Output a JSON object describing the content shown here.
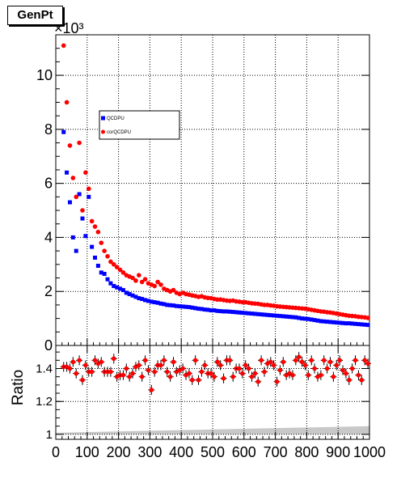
{
  "title": "GenPt",
  "chart_data": [
    {
      "type": "scatter",
      "panel": "main",
      "title": "GenPt",
      "xlabel": "",
      "ylabel": "",
      "exponent_label": "×10³",
      "xlim": [
        0,
        1000
      ],
      "ylim": [
        0,
        11.5
      ],
      "y_unit_multiplier": 1000,
      "xticks": [
        0,
        100,
        200,
        300,
        400,
        500,
        600,
        700,
        800,
        900,
        1000
      ],
      "yticks": [
        0,
        2,
        4,
        6,
        8,
        10
      ],
      "grid": true,
      "legend_placement": "upper-center",
      "series": [
        {
          "name": "QCDPU",
          "color": "#0000ff",
          "marker": "square",
          "x": [
            25,
            35,
            45,
            55,
            65,
            75,
            85,
            95,
            105,
            115,
            125,
            135,
            145,
            155,
            165,
            175,
            185,
            195,
            205,
            215,
            225,
            235,
            245,
            255,
            265,
            275,
            285,
            295,
            305,
            315,
            325,
            335,
            345,
            355,
            365,
            375,
            385,
            395,
            405,
            415,
            425,
            435,
            445,
            455,
            465,
            475,
            485,
            495,
            505,
            515,
            525,
            535,
            545,
            555,
            565,
            575,
            585,
            595,
            605,
            615,
            625,
            635,
            645,
            655,
            665,
            675,
            685,
            695,
            705,
            715,
            725,
            735,
            745,
            755,
            765,
            775,
            785,
            795,
            805,
            815,
            825,
            835,
            845,
            855,
            865,
            875,
            885,
            895,
            905,
            915,
            925,
            935,
            945,
            955,
            965,
            975,
            985,
            995
          ],
          "values": [
            7.9,
            6.4,
            5.3,
            4.0,
            3.5,
            5.6,
            4.7,
            4.05,
            5.5,
            3.65,
            3.25,
            2.95,
            2.7,
            2.65,
            2.45,
            2.3,
            2.2,
            2.15,
            2.1,
            2.05,
            1.95,
            1.9,
            1.85,
            1.8,
            1.75,
            1.72,
            1.68,
            1.65,
            1.62,
            1.6,
            1.58,
            1.55,
            1.53,
            1.5,
            1.49,
            1.48,
            1.46,
            1.45,
            1.44,
            1.43,
            1.42,
            1.4,
            1.38,
            1.36,
            1.35,
            1.33,
            1.32,
            1.3,
            1.3,
            1.28,
            1.27,
            1.26,
            1.26,
            1.25,
            1.24,
            1.23,
            1.22,
            1.21,
            1.2,
            1.19,
            1.18,
            1.17,
            1.16,
            1.15,
            1.14,
            1.13,
            1.12,
            1.11,
            1.1,
            1.09,
            1.08,
            1.07,
            1.06,
            1.05,
            1.04,
            1.02,
            1.0,
            0.99,
            0.98,
            0.96,
            0.94,
            0.92,
            0.9,
            0.89,
            0.88,
            0.87,
            0.86,
            0.85,
            0.84,
            0.83,
            0.82,
            0.82,
            0.81,
            0.8,
            0.79,
            0.78,
            0.77,
            0.76
          ]
        },
        {
          "name": "corQCDPU",
          "color": "#ff0000",
          "marker": "circle",
          "x": [
            25,
            35,
            45,
            55,
            65,
            75,
            85,
            95,
            105,
            115,
            125,
            135,
            145,
            155,
            165,
            175,
            185,
            195,
            205,
            215,
            225,
            235,
            245,
            255,
            265,
            275,
            285,
            295,
            305,
            315,
            325,
            335,
            345,
            355,
            365,
            375,
            385,
            395,
            405,
            415,
            425,
            435,
            445,
            455,
            465,
            475,
            485,
            495,
            505,
            515,
            525,
            535,
            545,
            555,
            565,
            575,
            585,
            595,
            605,
            615,
            625,
            635,
            645,
            655,
            665,
            675,
            685,
            695,
            705,
            715,
            725,
            735,
            745,
            755,
            765,
            775,
            785,
            795,
            805,
            815,
            825,
            835,
            845,
            855,
            865,
            875,
            885,
            895,
            905,
            915,
            925,
            935,
            945,
            955,
            965,
            975,
            985,
            995
          ],
          "values": [
            11.1,
            9.0,
            7.4,
            6.2,
            5.5,
            7.5,
            5.0,
            6.4,
            5.8,
            4.6,
            4.4,
            4.2,
            3.8,
            3.5,
            3.3,
            3.1,
            3.0,
            2.9,
            2.8,
            2.7,
            2.6,
            2.55,
            2.5,
            2.4,
            2.6,
            2.35,
            2.45,
            2.3,
            2.25,
            2.2,
            2.35,
            2.25,
            2.1,
            2.05,
            2.0,
            2.05,
            1.95,
            1.9,
            1.95,
            1.9,
            1.88,
            1.85,
            1.83,
            1.8,
            1.82,
            1.78,
            1.76,
            1.75,
            1.72,
            1.7,
            1.7,
            1.68,
            1.66,
            1.65,
            1.66,
            1.63,
            1.62,
            1.6,
            1.6,
            1.58,
            1.56,
            1.55,
            1.54,
            1.52,
            1.5,
            1.5,
            1.48,
            1.47,
            1.45,
            1.44,
            1.43,
            1.42,
            1.41,
            1.4,
            1.39,
            1.38,
            1.37,
            1.36,
            1.34,
            1.32,
            1.3,
            1.28,
            1.26,
            1.25,
            1.23,
            1.22,
            1.2,
            1.18,
            1.16,
            1.14,
            1.12,
            1.1,
            1.09,
            1.08,
            1.06,
            1.05,
            1.04,
            1.02
          ]
        }
      ]
    },
    {
      "type": "scatter",
      "panel": "ratio",
      "xlabel": "",
      "ylabel": "Ratio",
      "xlim": [
        0,
        1000
      ],
      "ylim": [
        0.97,
        1.54
      ],
      "xticks": [
        0,
        100,
        200,
        300,
        400,
        500,
        600,
        700,
        800,
        900,
        1000
      ],
      "yticks": [
        1.0,
        1.2,
        1.4
      ],
      "grid": true,
      "band": {
        "color": "#c8c8c8",
        "x": [
          0,
          1000
        ],
        "lower": 1.0,
        "upper": [
          1.01,
          1.05
        ]
      },
      "series": [
        {
          "name": "",
          "color": "#ff0000",
          "marker": "circle",
          "error_bars": true,
          "x": [
            25,
            35,
            45,
            55,
            65,
            75,
            85,
            95,
            105,
            115,
            125,
            135,
            145,
            155,
            165,
            175,
            185,
            195,
            205,
            215,
            225,
            235,
            245,
            255,
            265,
            275,
            285,
            295,
            305,
            315,
            325,
            335,
            345,
            355,
            365,
            375,
            385,
            395,
            405,
            415,
            425,
            435,
            445,
            455,
            465,
            475,
            485,
            495,
            505,
            515,
            525,
            535,
            545,
            555,
            565,
            575,
            585,
            595,
            605,
            615,
            625,
            635,
            645,
            655,
            665,
            675,
            685,
            695,
            705,
            715,
            725,
            735,
            745,
            755,
            765,
            775,
            785,
            795,
            805,
            815,
            825,
            835,
            845,
            855,
            865,
            875,
            885,
            895,
            905,
            915,
            925,
            935,
            945,
            955,
            965,
            975,
            985,
            995
          ],
          "values": [
            1.41,
            1.41,
            1.4,
            1.44,
            1.37,
            1.45,
            1.33,
            1.42,
            1.38,
            1.38,
            1.45,
            1.43,
            1.44,
            1.38,
            1.38,
            1.38,
            1.46,
            1.35,
            1.36,
            1.36,
            1.4,
            1.35,
            1.37,
            1.41,
            1.42,
            1.35,
            1.45,
            1.39,
            1.27,
            1.38,
            1.42,
            1.42,
            1.45,
            1.38,
            1.35,
            1.44,
            1.38,
            1.39,
            1.4,
            1.36,
            1.37,
            1.33,
            1.45,
            1.33,
            1.38,
            1.42,
            1.37,
            1.37,
            1.35,
            1.44,
            1.42,
            1.34,
            1.45,
            1.45,
            1.35,
            1.4,
            1.4,
            1.37,
            1.42,
            1.4,
            1.35,
            1.37,
            1.32,
            1.45,
            1.38,
            1.43,
            1.44,
            1.42,
            1.32,
            1.39,
            1.44,
            1.36,
            1.37,
            1.36,
            1.45,
            1.47,
            1.44,
            1.42,
            1.36,
            1.45,
            1.4,
            1.35,
            1.36,
            1.45,
            1.4,
            1.44,
            1.35,
            1.42,
            1.45,
            1.39,
            1.37,
            1.33,
            1.4,
            1.45,
            1.36,
            1.33,
            1.45,
            1.43
          ],
          "errors": [
            0.03,
            0.03,
            0.03,
            0.03,
            0.03,
            0.03,
            0.03,
            0.03,
            0.03,
            0.03,
            0.03,
            0.03,
            0.03,
            0.03,
            0.03,
            0.03,
            0.03,
            0.03,
            0.03,
            0.03,
            0.03,
            0.03,
            0.03,
            0.03,
            0.03,
            0.03,
            0.03,
            0.03,
            0.03,
            0.03,
            0.03,
            0.03,
            0.03,
            0.03,
            0.03,
            0.03,
            0.03,
            0.03,
            0.03,
            0.03,
            0.03,
            0.03,
            0.03,
            0.03,
            0.03,
            0.03,
            0.03,
            0.03,
            0.03,
            0.03,
            0.03,
            0.03,
            0.03,
            0.03,
            0.03,
            0.03,
            0.03,
            0.03,
            0.03,
            0.03,
            0.03,
            0.03,
            0.03,
            0.03,
            0.03,
            0.03,
            0.03,
            0.03,
            0.03,
            0.03,
            0.03,
            0.03,
            0.03,
            0.03,
            0.03,
            0.03,
            0.03,
            0.03,
            0.03,
            0.03,
            0.03,
            0.03,
            0.03,
            0.03,
            0.03,
            0.03,
            0.03,
            0.03,
            0.03,
            0.03,
            0.03,
            0.03,
            0.03,
            0.03,
            0.03,
            0.03,
            0.03,
            0.03
          ]
        }
      ]
    }
  ]
}
